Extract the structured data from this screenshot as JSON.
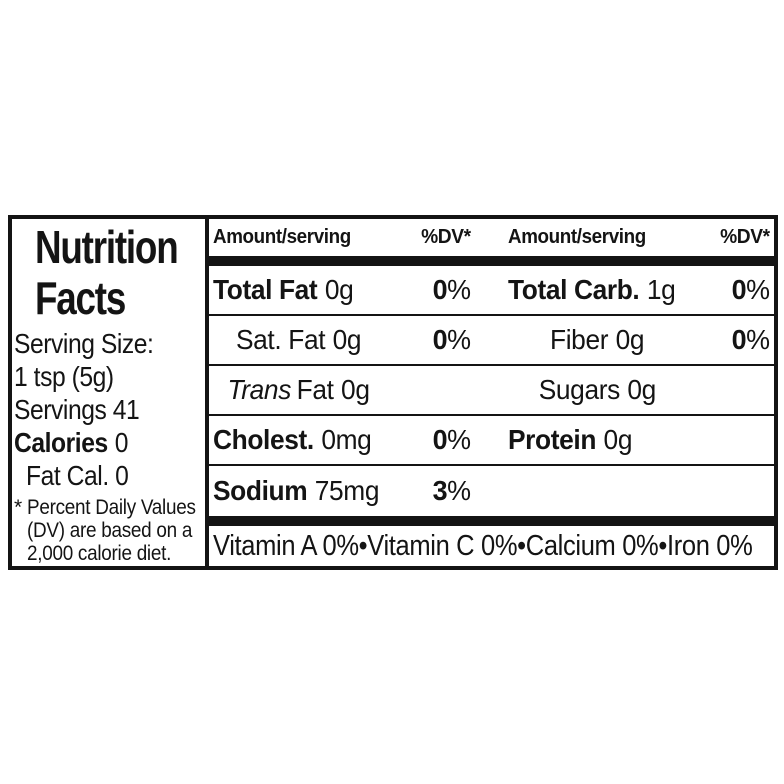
{
  "colors": {
    "ink": "#141414",
    "background": "#ffffff"
  },
  "label": {
    "title": {
      "line1": "Nutrition",
      "line2": "Facts"
    },
    "serving": {
      "size_label": "Serving Size:",
      "size_value": "1 tsp (5g)",
      "servings": "Servings 41"
    },
    "calories": {
      "label": "Calories",
      "value": "0",
      "fat_cal": "Fat Cal. 0"
    },
    "footnote": {
      "marker": "*",
      "lines": [
        "Percent Daily Values",
        "(DV) are based on a",
        "2,000 calorie diet."
      ]
    },
    "table": {
      "header_amount": "Amount/serving",
      "header_dv": "%DV*",
      "mid_rows": [
        {
          "name": "Total Fat",
          "value": "0g",
          "dv_num": "0",
          "dv_pct": "%"
        },
        {
          "name": "Sat. Fat",
          "value": "0g",
          "dv_num": "0",
          "dv_pct": "%"
        },
        {
          "name": "Trans",
          "name2": "Fat",
          "value": "0g"
        },
        {
          "name": "Cholest.",
          "value": "0mg",
          "dv_num": "0",
          "dv_pct": "%"
        },
        {
          "name": "Sodium",
          "value": "75mg",
          "dv_num": "3",
          "dv_pct": "%"
        }
      ],
      "right_rows": [
        {
          "name": "Total Carb.",
          "value": "1g",
          "dv_num": "0",
          "dv_pct": "%"
        },
        {
          "name": "Fiber",
          "value": "0g",
          "dv_num": "0",
          "dv_pct": "%"
        },
        {
          "name": "Sugars",
          "value": "0g"
        },
        {
          "name": "Protein",
          "value": "0g"
        }
      ]
    },
    "vitamins": "Vitamin A 0%•Vitamin C 0%•Calcium 0%•Iron 0%"
  }
}
